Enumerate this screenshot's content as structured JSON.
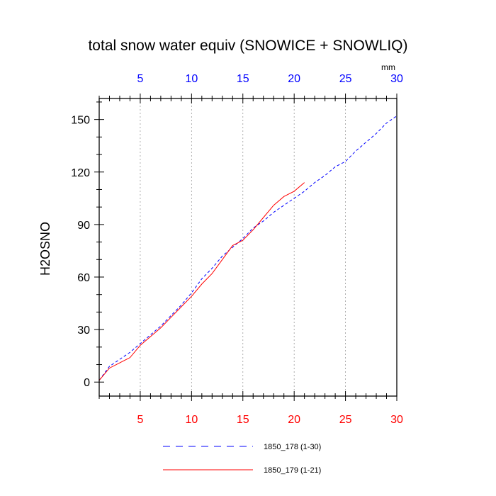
{
  "chart_data": {
    "type": "line",
    "title": "total snow water equiv (SNOWICE + SNOWLIQ)",
    "ylabel": "H2OSNO",
    "units": "mm",
    "xlim": [
      1,
      30
    ],
    "ylim": [
      -8,
      162
    ],
    "x_ticks": [
      5,
      10,
      15,
      20,
      25,
      30
    ],
    "y_ticks": [
      0,
      30,
      60,
      90,
      120,
      150
    ],
    "grid_x": true,
    "legend_position": "bottom",
    "colors": {
      "bottom_ticks": "#ff0000",
      "top_ticks": "#0000ff"
    },
    "series": [
      {
        "name": "1850_178 (1-30)",
        "color": "#0000ff",
        "dash": "dashed",
        "x": [
          1,
          2,
          3,
          4,
          5,
          6,
          7,
          8,
          9,
          10,
          11,
          12,
          13,
          14,
          15,
          16,
          17,
          18,
          19,
          20,
          21,
          22,
          23,
          24,
          25,
          26,
          27,
          28,
          29,
          30
        ],
        "y": [
          1,
          9,
          13,
          17,
          22,
          27,
          32,
          38,
          44,
          51,
          59,
          65,
          72,
          77,
          82,
          88,
          92,
          97,
          101,
          105,
          109,
          114,
          118,
          123,
          126,
          132,
          137,
          142,
          148,
          152
        ]
      },
      {
        "name": "1850_179 (1-21)",
        "color": "#ff0000",
        "dash": "solid",
        "x": [
          1,
          2,
          3,
          4,
          5,
          6,
          7,
          8,
          9,
          10,
          11,
          12,
          13,
          14,
          15,
          16,
          17,
          18,
          19,
          20,
          21
        ],
        "y": [
          1,
          8,
          11,
          14,
          21,
          26,
          31,
          37,
          43,
          49,
          56,
          62,
          70,
          78,
          81,
          87,
          94,
          101,
          106,
          109,
          114
        ]
      }
    ]
  }
}
